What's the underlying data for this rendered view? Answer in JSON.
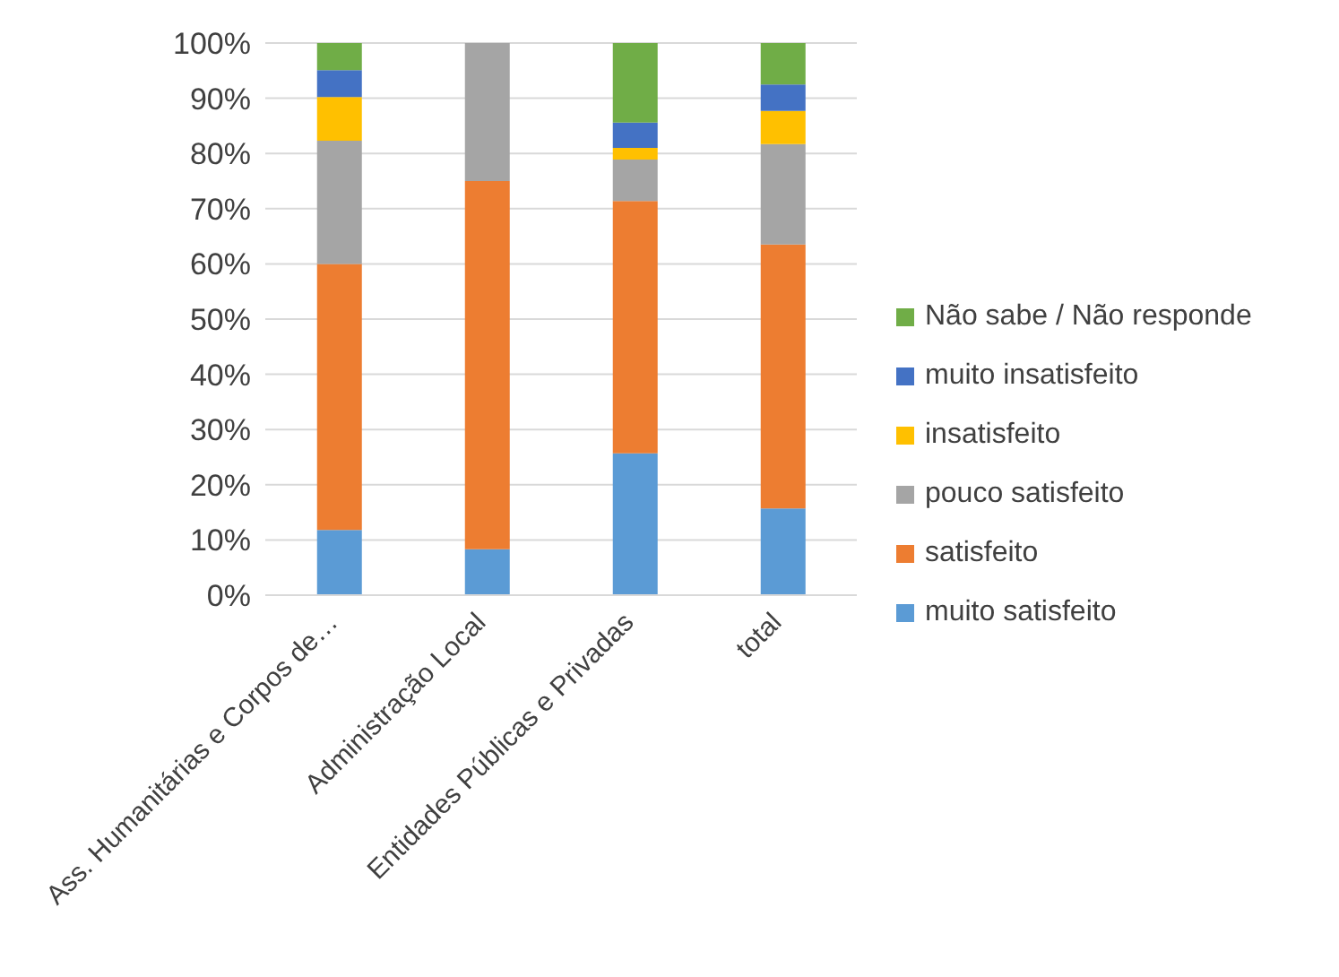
{
  "chart_data": {
    "type": "bar",
    "stacked": true,
    "categories": [
      "Ass. Humanitárias e Corpos de…",
      "Administração Local",
      "Entidades Públicas e Privadas",
      "total"
    ],
    "series": [
      {
        "name": "muito satisfeito",
        "color": "#5b9bd5",
        "values": [
          11.8,
          8.3,
          25.7,
          15.7
        ]
      },
      {
        "name": "satisfeito",
        "color": "#ed7d31",
        "values": [
          48.2,
          66.7,
          45.7,
          47.8
        ]
      },
      {
        "name": "pouco satisfeito",
        "color": "#a5a5a5",
        "values": [
          22.3,
          25,
          7.5,
          18.2
        ]
      },
      {
        "name": "insatisfeito",
        "color": "#ffc000",
        "values": [
          7.9,
          0,
          2.1,
          6.0
        ]
      },
      {
        "name": "muito insatisfeito",
        "color": "#4472c4",
        "values": [
          4.9,
          0,
          4.6,
          4.8
        ]
      },
      {
        "name": "Não sabe / Não responde",
        "color": "#70ad47",
        "values": [
          4.9,
          0,
          14.4,
          7.5
        ]
      }
    ],
    "ylim": [
      0,
      100
    ],
    "yticks": [
      {
        "value": 0,
        "label": "0%"
      },
      {
        "value": 10,
        "label": "10%"
      },
      {
        "value": 20,
        "label": "20%"
      },
      {
        "value": 30,
        "label": "30%"
      },
      {
        "value": 40,
        "label": "40%"
      },
      {
        "value": 50,
        "label": "50%"
      },
      {
        "value": 60,
        "label": "60%"
      },
      {
        "value": 70,
        "label": "70%"
      },
      {
        "value": 80,
        "label": "80%"
      },
      {
        "value": 90,
        "label": "90%"
      },
      {
        "value": 100,
        "label": "100%"
      }
    ],
    "grid": "y",
    "legend": "right"
  }
}
